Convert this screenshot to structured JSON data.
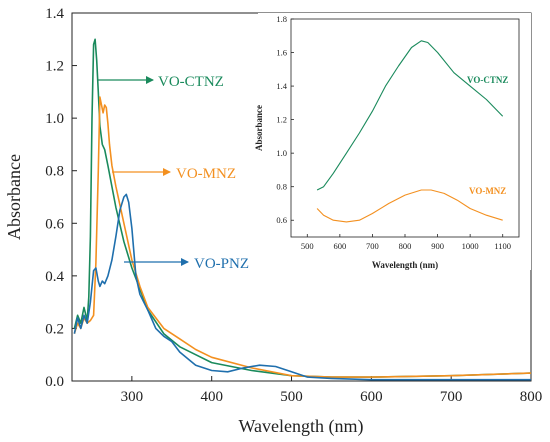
{
  "chart_data": [
    {
      "type": "line",
      "title": "",
      "xlabel": "Wavelength (nm)",
      "ylabel": "Absorbance",
      "xlim": [
        225,
        800
      ],
      "ylim": [
        0.0,
        1.4
      ],
      "xticks": [
        300,
        400,
        500,
        600,
        700,
        800
      ],
      "yticks": [
        0.0,
        0.2,
        0.4,
        0.6,
        0.8,
        1.0,
        1.2,
        1.4
      ],
      "grid": false,
      "series": [
        {
          "name": "VO-CTNZ",
          "color": "#1a8a5c",
          "x": [
            228,
            232,
            236,
            240,
            244,
            246,
            248,
            250,
            252,
            254,
            256,
            258,
            260,
            263,
            266,
            270,
            275,
            280,
            290,
            300,
            310,
            320,
            340,
            360,
            380,
            400,
            450,
            500,
            550,
            600,
            700,
            800
          ],
          "y": [
            0.2,
            0.25,
            0.22,
            0.28,
            0.23,
            0.32,
            0.55,
            1.0,
            1.28,
            1.3,
            1.22,
            1.1,
            0.97,
            0.9,
            0.88,
            0.82,
            0.74,
            0.66,
            0.53,
            0.43,
            0.35,
            0.27,
            0.18,
            0.13,
            0.1,
            0.07,
            0.04,
            0.02,
            0.015,
            0.015,
            0.02,
            0.03
          ]
        },
        {
          "name": "VO-MNZ",
          "color": "#f39020",
          "x": [
            228,
            232,
            236,
            240,
            244,
            248,
            252,
            255,
            258,
            260,
            262,
            264,
            266,
            268,
            270,
            272,
            275,
            280,
            290,
            300,
            310,
            320,
            340,
            360,
            380,
            400,
            450,
            500,
            550,
            600,
            700,
            800
          ],
          "y": [
            0.18,
            0.22,
            0.2,
            0.24,
            0.22,
            0.23,
            0.25,
            0.45,
            0.8,
            1.08,
            1.05,
            1.02,
            1.05,
            1.04,
            0.98,
            0.9,
            0.82,
            0.74,
            0.6,
            0.46,
            0.36,
            0.28,
            0.2,
            0.16,
            0.12,
            0.09,
            0.05,
            0.02,
            0.015,
            0.015,
            0.02,
            0.03
          ]
        },
        {
          "name": "VO-PNZ",
          "color": "#1f6fad",
          "x": [
            228,
            232,
            236,
            240,
            244,
            248,
            252,
            255,
            258,
            260,
            263,
            266,
            270,
            275,
            280,
            285,
            290,
            293,
            296,
            300,
            305,
            310,
            315,
            320,
            330,
            340,
            350,
            360,
            380,
            400,
            420,
            440,
            460,
            480,
            500,
            520,
            550,
            600,
            700,
            800
          ],
          "y": [
            0.18,
            0.24,
            0.2,
            0.25,
            0.22,
            0.3,
            0.42,
            0.43,
            0.38,
            0.36,
            0.38,
            0.37,
            0.4,
            0.46,
            0.55,
            0.65,
            0.7,
            0.71,
            0.68,
            0.58,
            0.4,
            0.33,
            0.3,
            0.27,
            0.2,
            0.17,
            0.15,
            0.11,
            0.06,
            0.04,
            0.035,
            0.05,
            0.06,
            0.055,
            0.035,
            0.015,
            0.01,
            0.005,
            0.005,
            0.005
          ]
        }
      ],
      "annotations": [
        "VO-CTNZ",
        "VO-MNZ",
        "VO-PNZ"
      ]
    },
    {
      "type": "line",
      "title": "",
      "xlabel": "Wavelength (nm)",
      "ylabel": "Absorbance",
      "xlim": [
        450,
        1150
      ],
      "ylim": [
        0.5,
        1.8
      ],
      "xticks": [
        500,
        600,
        700,
        800,
        900,
        1000,
        1100
      ],
      "yticks": [
        0.6,
        0.8,
        1.0,
        1.2,
        1.4,
        1.6,
        1.8
      ],
      "grid": false,
      "series": [
        {
          "name": "VO-CTNZ",
          "color": "#1a8a5c",
          "x": [
            530,
            550,
            580,
            620,
            660,
            700,
            740,
            780,
            820,
            850,
            870,
            900,
            950,
            1000,
            1050,
            1100
          ],
          "y": [
            0.78,
            0.8,
            0.88,
            1.0,
            1.12,
            1.25,
            1.4,
            1.52,
            1.63,
            1.67,
            1.66,
            1.6,
            1.48,
            1.4,
            1.32,
            1.22
          ]
        },
        {
          "name": "VO-MNZ",
          "color": "#f39020",
          "x": [
            530,
            550,
            580,
            620,
            660,
            700,
            750,
            800,
            850,
            880,
            920,
            960,
            1000,
            1050,
            1100
          ],
          "y": [
            0.67,
            0.63,
            0.6,
            0.59,
            0.6,
            0.64,
            0.7,
            0.75,
            0.78,
            0.78,
            0.76,
            0.72,
            0.67,
            0.63,
            0.6
          ]
        }
      ],
      "annotations": [
        "VO-CTNZ",
        "VO-MNZ"
      ]
    }
  ]
}
